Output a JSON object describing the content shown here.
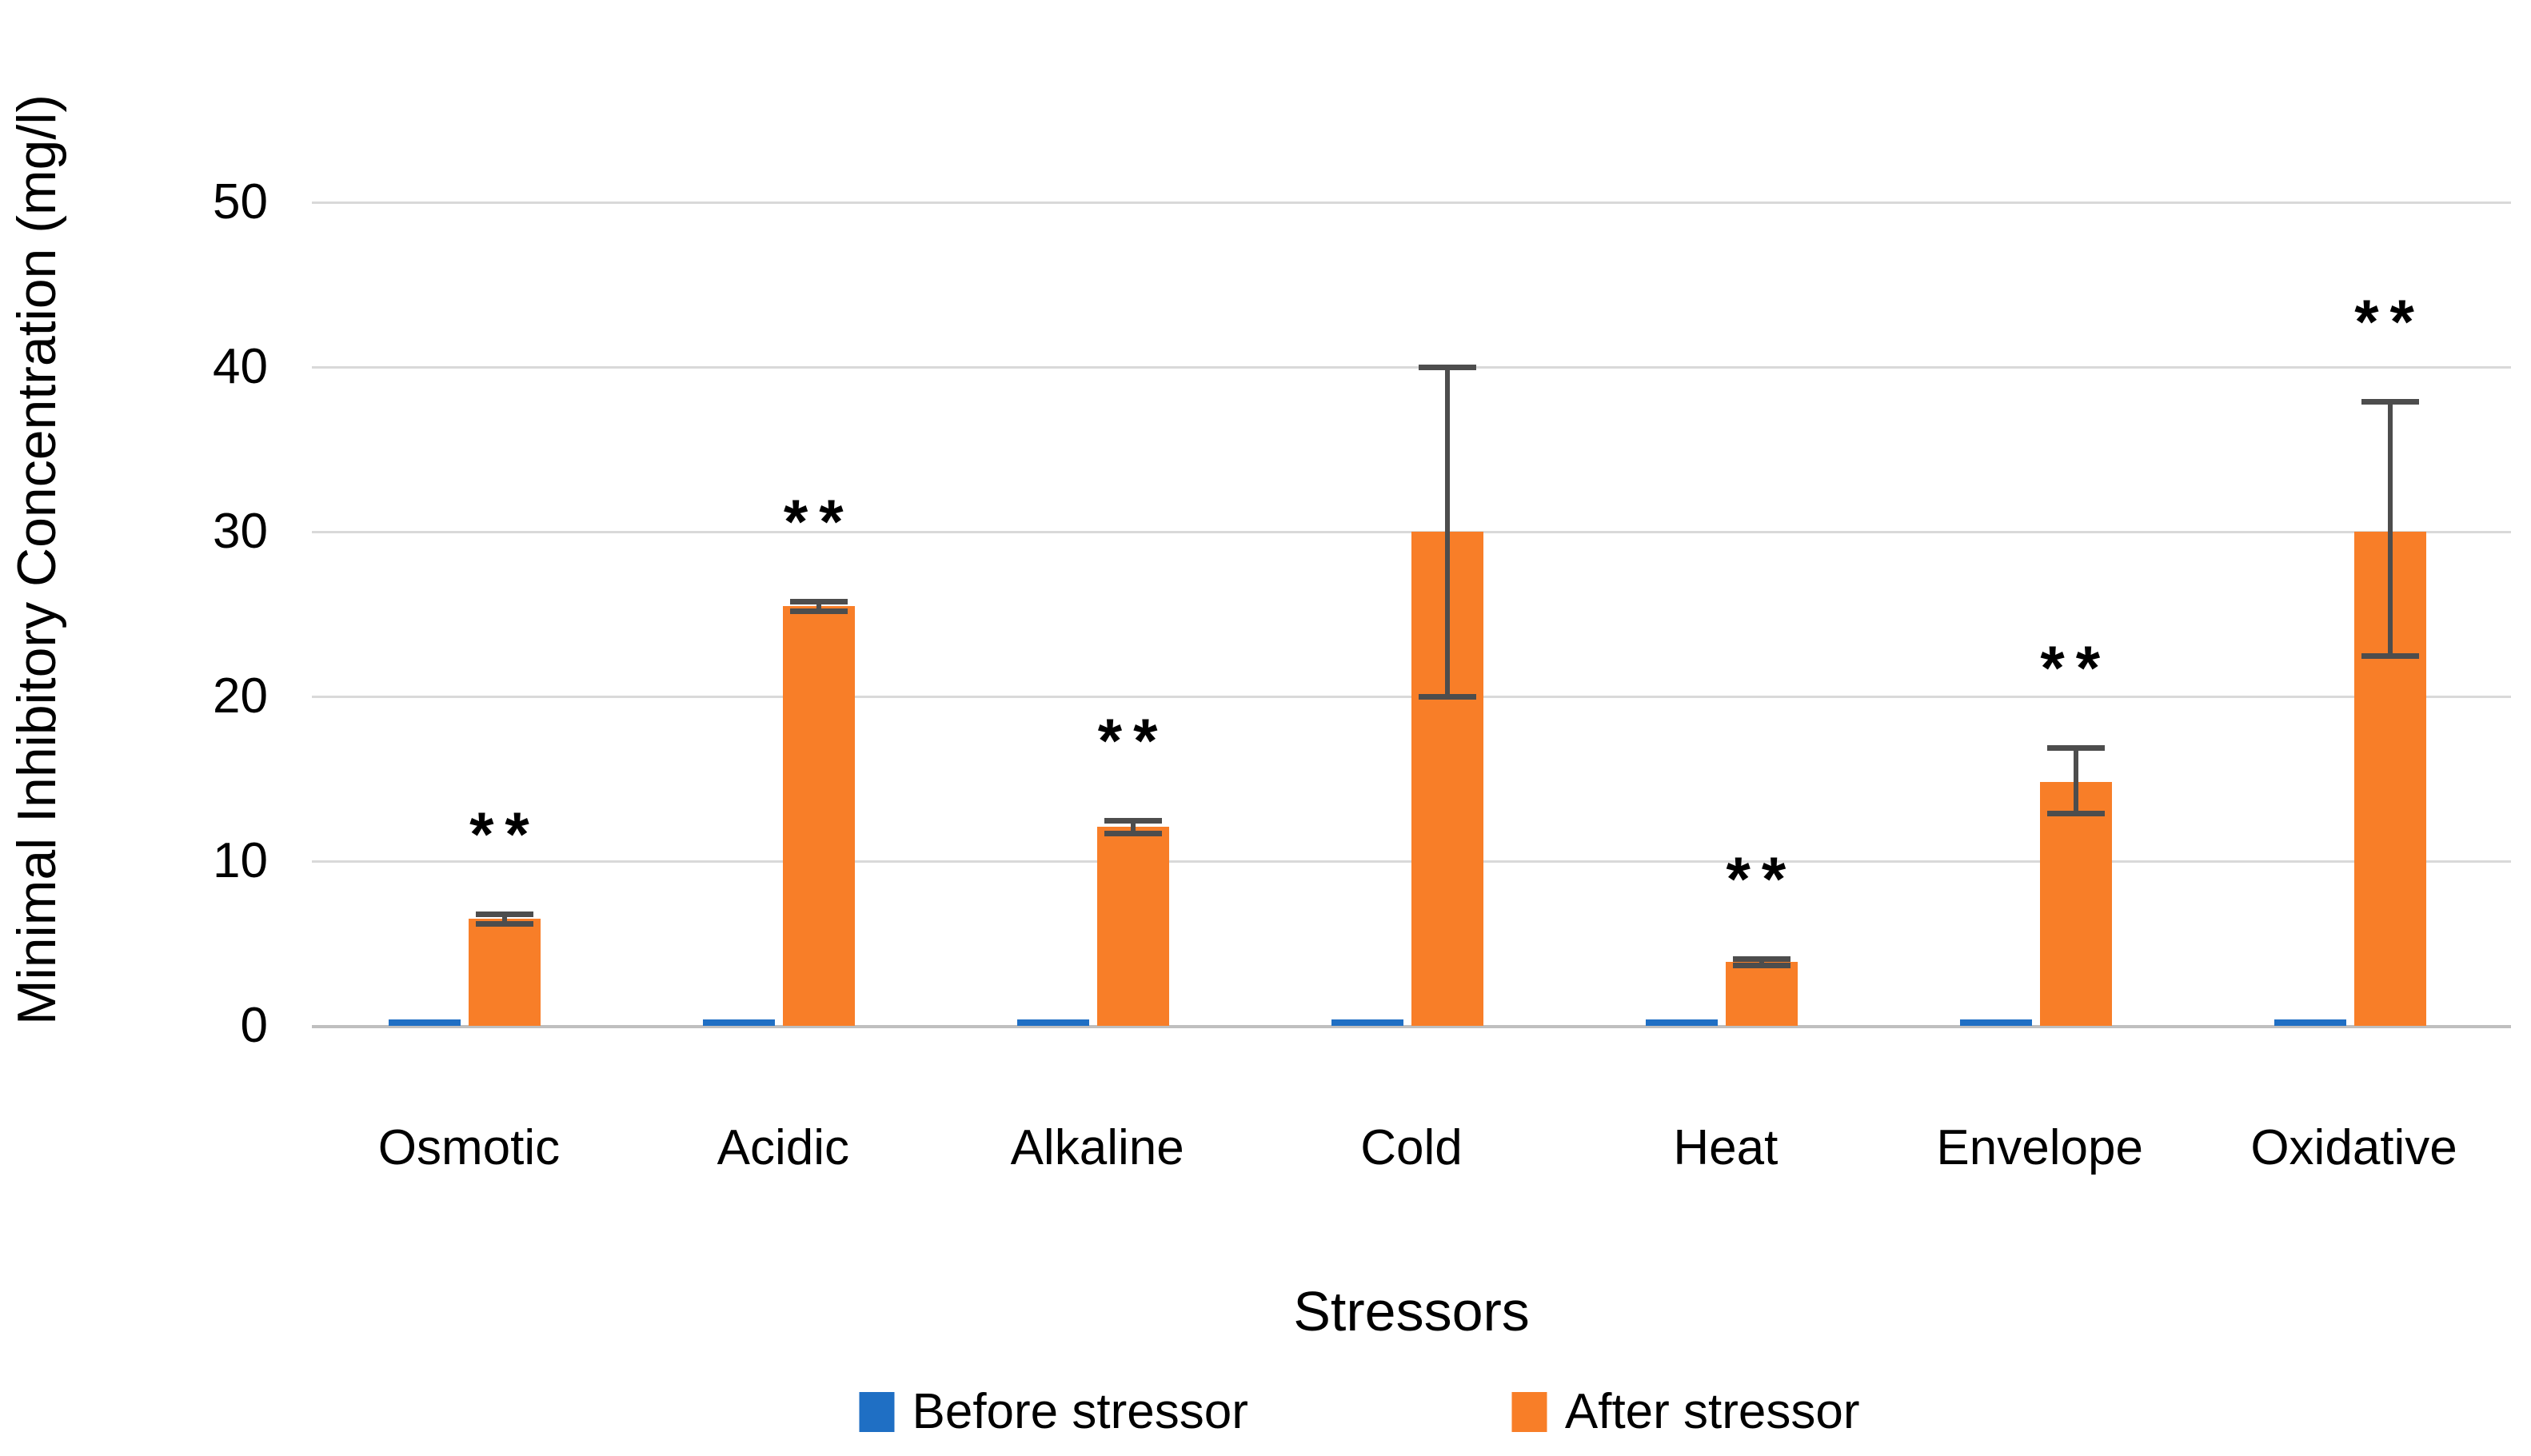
{
  "figure": {
    "kind": "grouped bar chart with error bars",
    "background": "#ffffff"
  },
  "chart_data": {
    "type": "bar",
    "title": "",
    "xlabel": "Stressors",
    "ylabel": "Minimal Inhibitory Concentration (mg/l)",
    "ylim": [
      0,
      50
    ],
    "yticks": [
      0,
      10,
      20,
      30,
      40,
      50
    ],
    "grid": "horizontal",
    "gridline_color": "#d9d9d9",
    "axis_line_color": "#bfbfbf",
    "error_bar_color": "#4d4d4d",
    "significance_marker": "**",
    "legend_position": "bottom",
    "categories": [
      "Osmotic",
      "Acidic",
      "Alkaline",
      "Cold",
      "Heat",
      "Envelope",
      "Oxidative"
    ],
    "series": [
      {
        "name": "Before stressor",
        "color": "#1f6fc4",
        "values": [
          0.4,
          0.4,
          0.4,
          0.4,
          0.4,
          0.4,
          0.4
        ]
      },
      {
        "name": "After stressor",
        "color": "#f87e28",
        "values": [
          6.5,
          25.5,
          12.1,
          30,
          3.9,
          14.8,
          30
        ],
        "error_high": [
          6.8,
          25.8,
          12.5,
          40,
          4.1,
          16.9,
          37.9
        ],
        "error_low": [
          6.2,
          25.2,
          11.7,
          20,
          3.7,
          12.9,
          22.5
        ],
        "significance": [
          "**",
          "**",
          "**",
          "",
          "**",
          "**",
          "**"
        ]
      }
    ]
  },
  "layout_text": {
    "ylabel": "Minimal Inhibitory Concentration (mg/l)",
    "xlabel": "Stressors"
  }
}
